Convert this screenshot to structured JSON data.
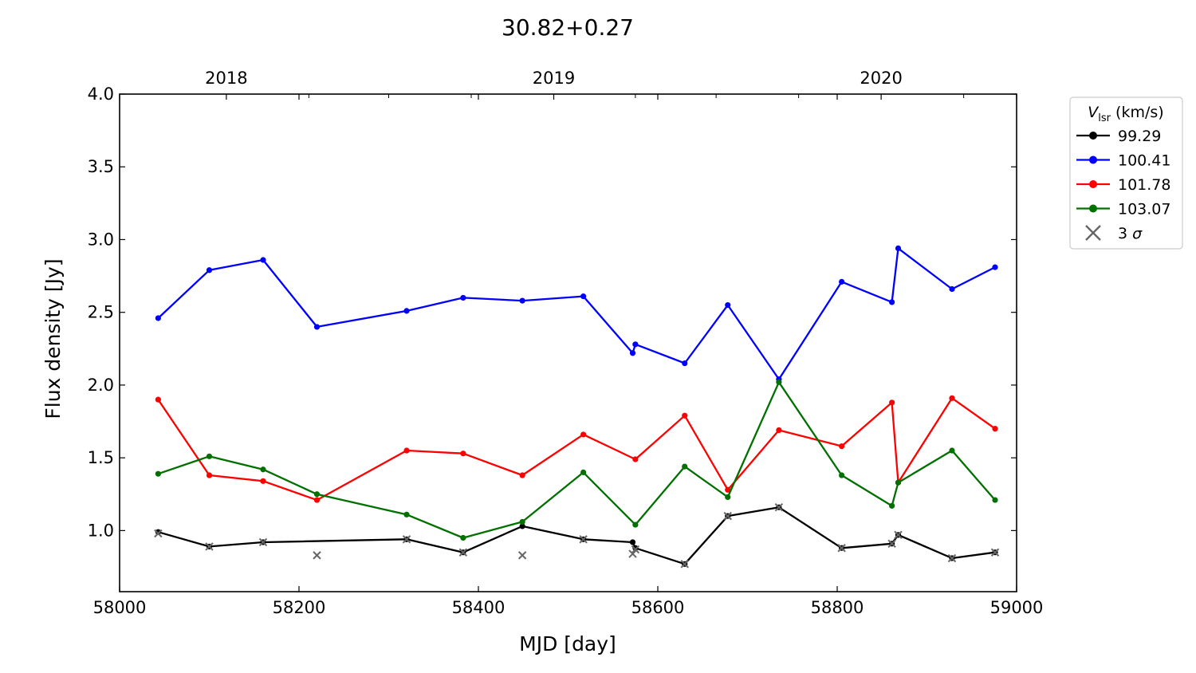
{
  "chart_data": {
    "type": "line",
    "title": "30.82+0.27",
    "xlabel": "MJD [day]",
    "ylabel": "Flux density [Jy]",
    "xlim": [
      58000,
      59000
    ],
    "ylim": [
      0.58,
      4.0
    ],
    "xticks": [
      58000,
      58200,
      58400,
      58600,
      58800,
      59000
    ],
    "yticks": [
      1.0,
      1.5,
      2.0,
      2.5,
      3.0,
      3.5,
      4.0
    ],
    "xtick_labels": [
      "58000",
      "58200",
      "58400",
      "58600",
      "58800",
      "59000"
    ],
    "ytick_labels": [
      "1.0",
      "1.5",
      "2.0",
      "2.5",
      "3.0",
      "3.5",
      "4.0"
    ],
    "top_axis": {
      "labels": [
        "2018",
        "2019",
        "2020"
      ],
      "positions": [
        58119,
        58484,
        58849
      ],
      "minor_ticks": [
        58211,
        58300,
        58392,
        58575,
        58665,
        58757,
        58941
      ]
    },
    "grid": false,
    "legend": {
      "position": "outside-right-top",
      "title_main": "V",
      "title_sub": "lsr",
      "title_rest": " (km/s)",
      "entries": [
        "99.29",
        "100.41",
        "101.78",
        "103.07",
        "3 σ"
      ]
    },
    "series": [
      {
        "name": "99.29",
        "color": "#000000",
        "x": [
          58043,
          58100,
          58160,
          58320,
          58383,
          58449,
          58517,
          58572,
          58575,
          58630,
          58678,
          58735,
          58805,
          58861,
          58868,
          58928,
          58976
        ],
        "y": [
          0.99,
          0.89,
          0.92,
          0.94,
          0.85,
          1.03,
          0.94,
          0.92,
          0.88,
          0.77,
          1.1,
          1.16,
          0.88,
          0.91,
          0.97,
          0.81,
          0.85
        ]
      },
      {
        "name": "100.41",
        "color": "#0000ff",
        "x": [
          58043,
          58100,
          58160,
          58220,
          58320,
          58383,
          58449,
          58517,
          58572,
          58575,
          58630,
          58678,
          58735,
          58805,
          58861,
          58868,
          58928,
          58976
        ],
        "y": [
          2.46,
          2.79,
          2.86,
          2.4,
          2.51,
          2.6,
          2.58,
          2.61,
          2.22,
          2.28,
          2.15,
          2.55,
          2.04,
          2.71,
          2.57,
          2.94,
          2.66,
          2.81
        ]
      },
      {
        "name": "101.78",
        "color": "#ff0000",
        "x": [
          58043,
          58100,
          58160,
          58220,
          58320,
          58383,
          58449,
          58517,
          58575,
          58630,
          58678,
          58735,
          58805,
          58861,
          58868,
          58928,
          58976
        ],
        "y": [
          1.9,
          1.38,
          1.34,
          1.21,
          1.55,
          1.53,
          1.38,
          1.66,
          1.49,
          1.79,
          1.28,
          1.69,
          1.58,
          1.88,
          1.33,
          1.91,
          1.7
        ]
      },
      {
        "name": "103.07",
        "color": "#007000",
        "x": [
          58043,
          58100,
          58160,
          58220,
          58320,
          58383,
          58449,
          58517,
          58575,
          58630,
          58678,
          58735,
          58805,
          58861,
          58868,
          58928,
          58976
        ],
        "y": [
          1.39,
          1.51,
          1.42,
          1.25,
          1.11,
          0.95,
          1.06,
          1.4,
          1.04,
          1.44,
          1.23,
          2.02,
          1.38,
          1.17,
          1.33,
          1.55,
          1.21
        ]
      }
    ],
    "sigma3": {
      "name": "3 σ",
      "color": "#666666",
      "x": [
        58043,
        58100,
        58160,
        58220,
        58320,
        58383,
        58449,
        58517,
        58572,
        58575,
        58630,
        58678,
        58735,
        58805,
        58861,
        58868,
        58928,
        58976
      ],
      "y": [
        0.98,
        0.89,
        0.92,
        0.83,
        0.94,
        0.85,
        0.83,
        0.94,
        0.84,
        0.87,
        0.77,
        1.1,
        1.16,
        0.88,
        0.91,
        0.97,
        0.81,
        0.85
      ]
    }
  }
}
